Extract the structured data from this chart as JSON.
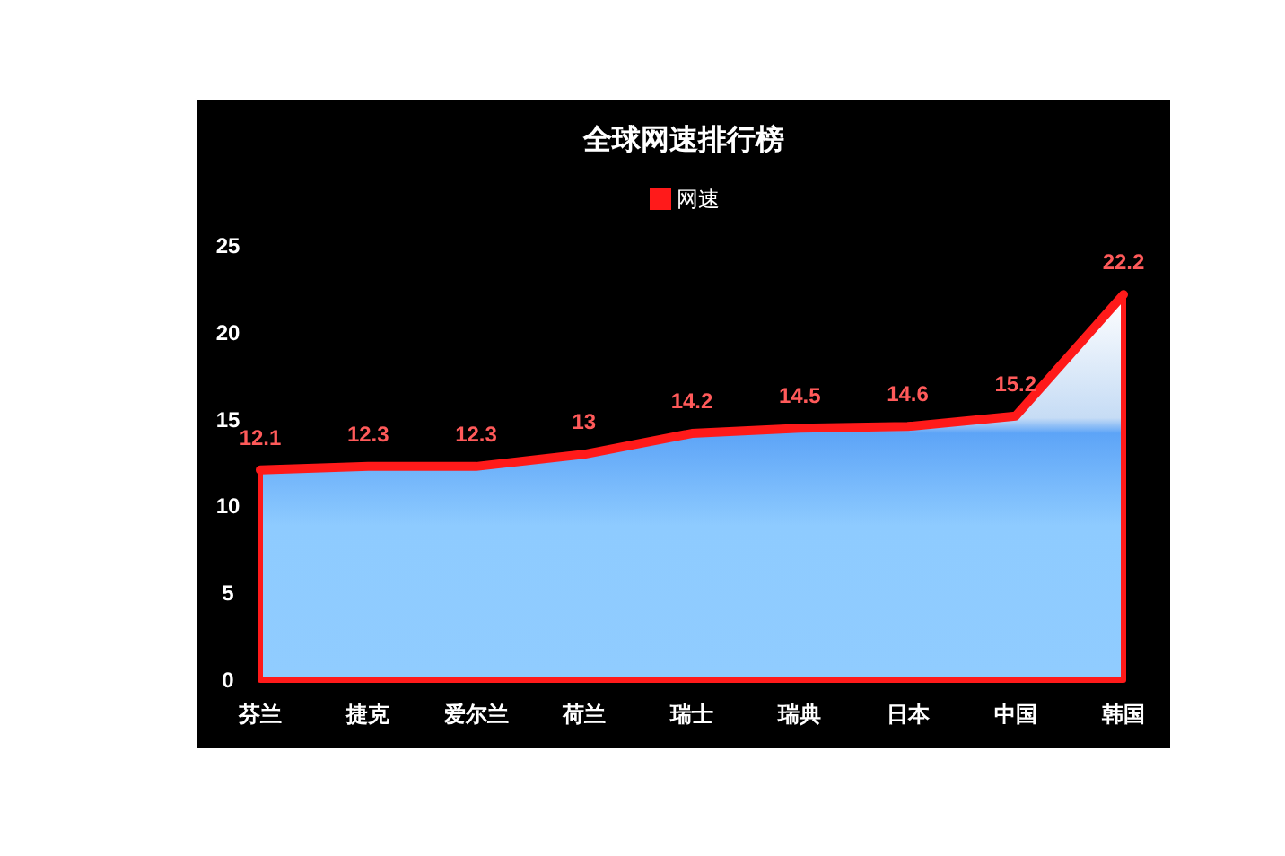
{
  "chart_data": {
    "type": "area",
    "title": "全球网速排行榜",
    "categories": [
      "芬兰",
      "捷克",
      "爱尔兰",
      "荷兰",
      "瑞士",
      "瑞典",
      "日本",
      "中国",
      "韩国"
    ],
    "series": [
      {
        "name": "网速",
        "color": "#ff1a1a",
        "values": [
          12.1,
          12.3,
          12.3,
          13,
          14.2,
          14.5,
          14.6,
          15.2,
          22.2
        ]
      }
    ],
    "ylim": [
      0,
      25
    ],
    "yticks": [
      0,
      5,
      10,
      15,
      20,
      25
    ],
    "grid": false,
    "legend": "top",
    "data_labels": true
  }
}
